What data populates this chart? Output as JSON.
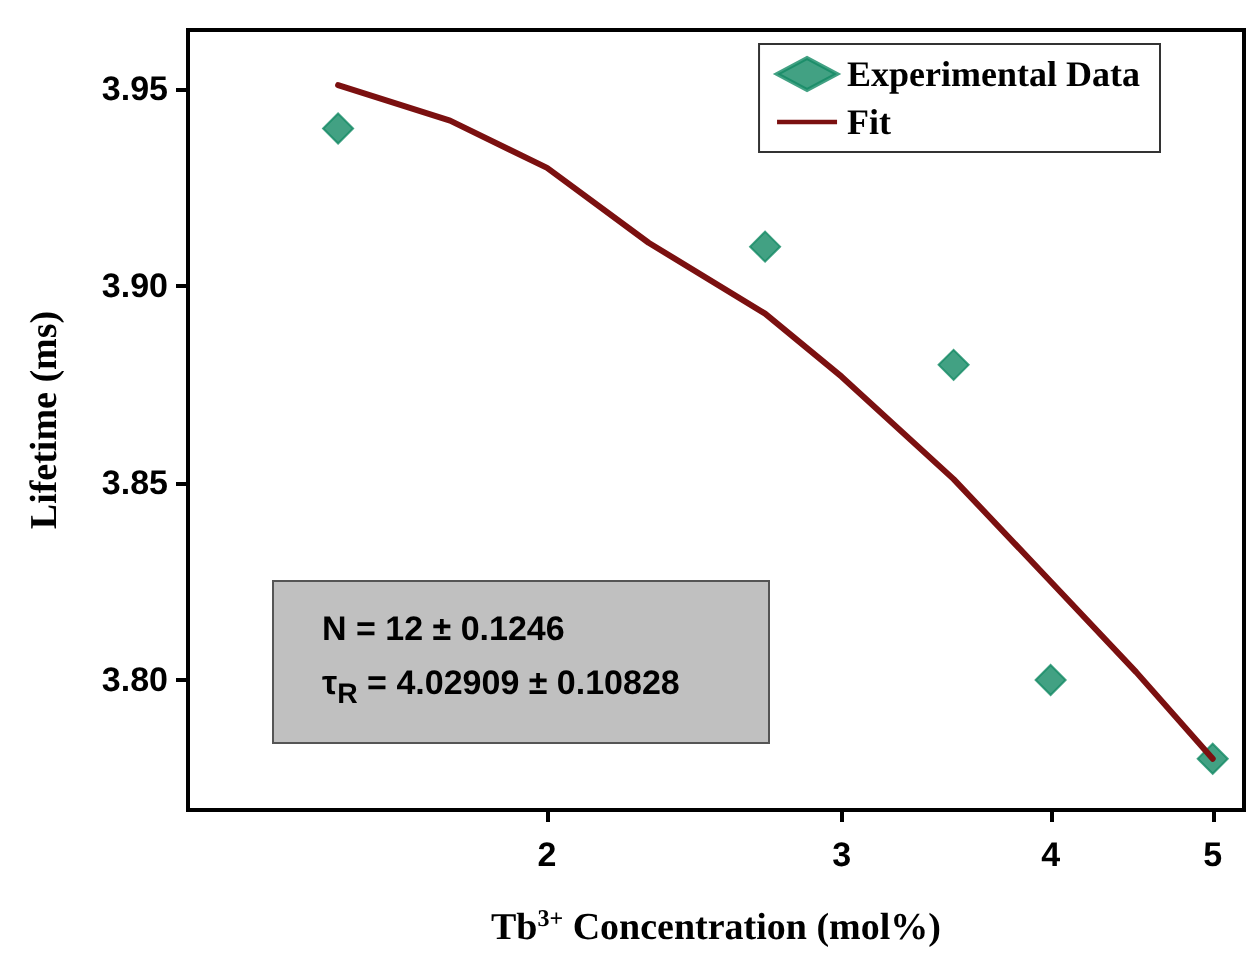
{
  "chart_data": {
    "type": "scatter",
    "xlabel": "Tb$^{3+}$ Concentration (mol%)",
    "ylabel": "Lifetime (ms)",
    "log": "x",
    "xlim": [
      1.22,
      5.22
    ],
    "xticks": [
      2,
      3,
      4,
      5
    ],
    "ylim": [
      3.767,
      3.965
    ],
    "yticks": [
      {
        "value": 3.8,
        "label": "3.80"
      },
      3.85,
      {
        "value": 3.9,
        "label": "3.90"
      },
      3.95
    ],
    "grid": false,
    "legend": "top right",
    "series": [
      {
        "name": "Experimental Data",
        "marker": "diamond",
        "color": "#138a64",
        "x": [
          1.5,
          2.7,
          3.5,
          4,
          5
        ],
        "values": [
          3.94,
          3.91,
          3.88,
          3.8,
          3.78
        ]
      },
      {
        "name": "Fit",
        "type": "line",
        "marker": "none",
        "color": "#7b1010",
        "x": [
          1.5,
          1.75,
          2,
          2.3,
          2.7,
          3,
          3.5,
          4,
          4.5,
          5
        ],
        "values": [
          3.951,
          3.942,
          3.93,
          3.911,
          3.893,
          3.877,
          3.851,
          3.825,
          3.802,
          3.78
        ]
      }
    ],
    "annotations": [
      "N = 12 ± 0.1246",
      "τ$_{R}$ = 4.02909 ± 0.10828"
    ]
  }
}
